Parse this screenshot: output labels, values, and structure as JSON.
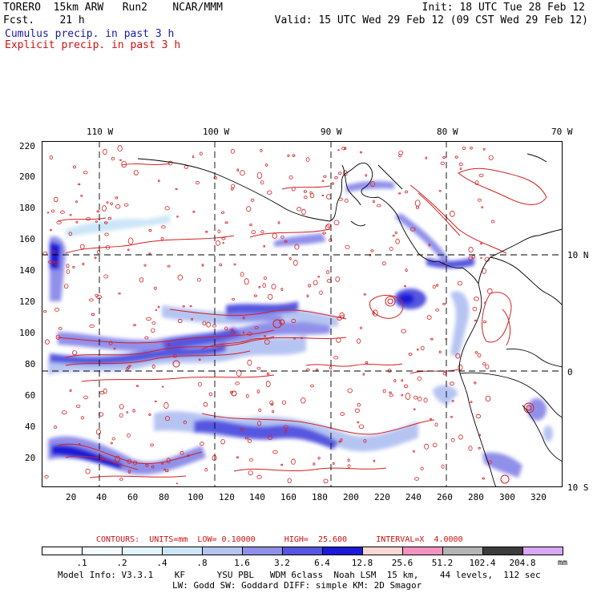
{
  "header": {
    "model": "TORERO  15km ARW   Run2    NCAR/MMM",
    "forecast": "Fcst.    21 h",
    "init": "Init: 18 UTC Tue 28 Feb 12",
    "valid": "Valid: 15 UTC Wed 29 Feb 12 (09 CST Wed 29 Feb 12)",
    "cumulus": "Cumulus precip. in past 3 h",
    "explicit": "Explicit precip. in past 3 h"
  },
  "map": {
    "lon_labels": [
      "110 W",
      "100 W",
      "90 W",
      "80 W",
      "70 W"
    ],
    "lat_labels": [
      "10 N",
      "0",
      "10 S"
    ],
    "x_ticks": [
      "20",
      "40",
      "60",
      "80",
      "100",
      "120",
      "140",
      "160",
      "180",
      "200",
      "220",
      "240",
      "260",
      "280",
      "300",
      "320"
    ],
    "y_ticks": [
      "220",
      "200",
      "180",
      "160",
      "140",
      "120",
      "100",
      "80",
      "60",
      "40",
      "20"
    ]
  },
  "contours_info": "CONTOURS:  UNITS=mm  LOW= 0.10000      HIGH=  25.600      INTERVAL=X  4.0000",
  "colorbar": {
    "unit": "mm",
    "labels": [
      ".1",
      ".2",
      ".4",
      ".8",
      "1.6",
      "3.2",
      "6.4",
      "12.8",
      "25.6",
      "51.2",
      "102.4",
      "204.8"
    ],
    "colors": [
      "#ffffff",
      "#f2fbff",
      "#e2f5fd",
      "#cce6f8",
      "#b6c4f2",
      "#9090ea",
      "#5656e0",
      "#1a1ad8",
      "#fcd7d7",
      "#f493bf",
      "#b4b4b4",
      "#3c3c3c",
      "#d8a8f4"
    ]
  },
  "footer": {
    "line1": "Model Info: V3.3.1    KF      YSU PBL   WDM 6class  Noah LSM  15 km,    44 levels,  112 sec",
    "line2": "LW: Godd SW: Goddard DIFF: simple KM: 2D Smagor"
  }
}
